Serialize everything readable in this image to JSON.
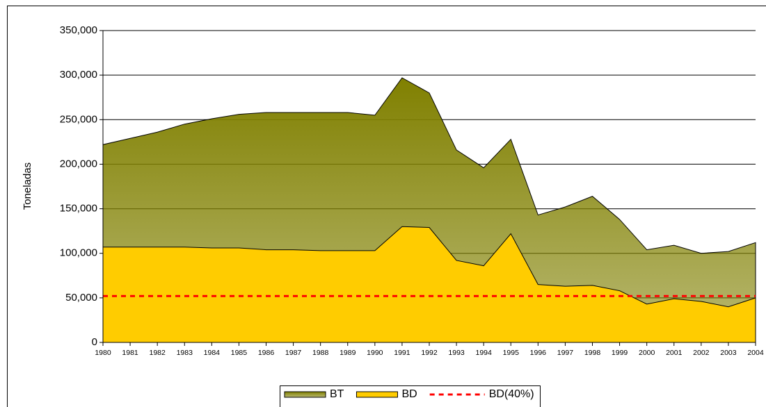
{
  "chart_data": {
    "type": "area",
    "y_label": "Toneladas",
    "categories": [
      "1980",
      "1981",
      "1982",
      "1983",
      "1984",
      "1985",
      "1986",
      "1987",
      "1988",
      "1989",
      "1990",
      "1991",
      "1992",
      "1993",
      "1994",
      "1995",
      "1996",
      "1997",
      "1998",
      "1999",
      "2000",
      "2001",
      "2002",
      "2003",
      "2004"
    ],
    "series": [
      {
        "name": "BT",
        "color": "#808000",
        "style": "area",
        "values": [
          222000,
          229000,
          236000,
          245000,
          251000,
          256000,
          258000,
          258000,
          258000,
          258000,
          255000,
          297000,
          280000,
          216000,
          196000,
          228000,
          143000,
          152000,
          164000,
          138000,
          104000,
          109000,
          100000,
          102000,
          112000
        ]
      },
      {
        "name": "BD",
        "color": "#ffcc00",
        "style": "area",
        "values": [
          107000,
          107000,
          107000,
          107000,
          106000,
          106000,
          104000,
          104000,
          103000,
          103000,
          103000,
          130000,
          129000,
          92000,
          86000,
          122000,
          65000,
          63000,
          64000,
          58000,
          43000,
          49000,
          46000,
          40000,
          50000
        ]
      },
      {
        "name": "BD(40%)",
        "color": "#ff0000",
        "style": "dashed-line",
        "values": [
          52000,
          52000,
          52000,
          52000,
          52000,
          52000,
          52000,
          52000,
          52000,
          52000,
          52000,
          52000,
          52000,
          52000,
          52000,
          52000,
          52000,
          52000,
          52000,
          52000,
          52000,
          52000,
          52000,
          52000,
          52000
        ]
      }
    ],
    "ylim": [
      0,
      350000
    ],
    "yticks": [
      0,
      {
        "value": 50000,
        "label": "50,000"
      },
      {
        "value": 100000,
        "label": "100,000"
      },
      {
        "value": 150000,
        "label": "150,000"
      },
      {
        "value": 200000,
        "label": "200,000"
      },
      {
        "value": 250000,
        "label": "250,000"
      },
      {
        "value": 300000,
        "label": "300,000"
      },
      {
        "value": 350000,
        "label": "350,000"
      }
    ],
    "grid": true,
    "legend": "bottom"
  }
}
